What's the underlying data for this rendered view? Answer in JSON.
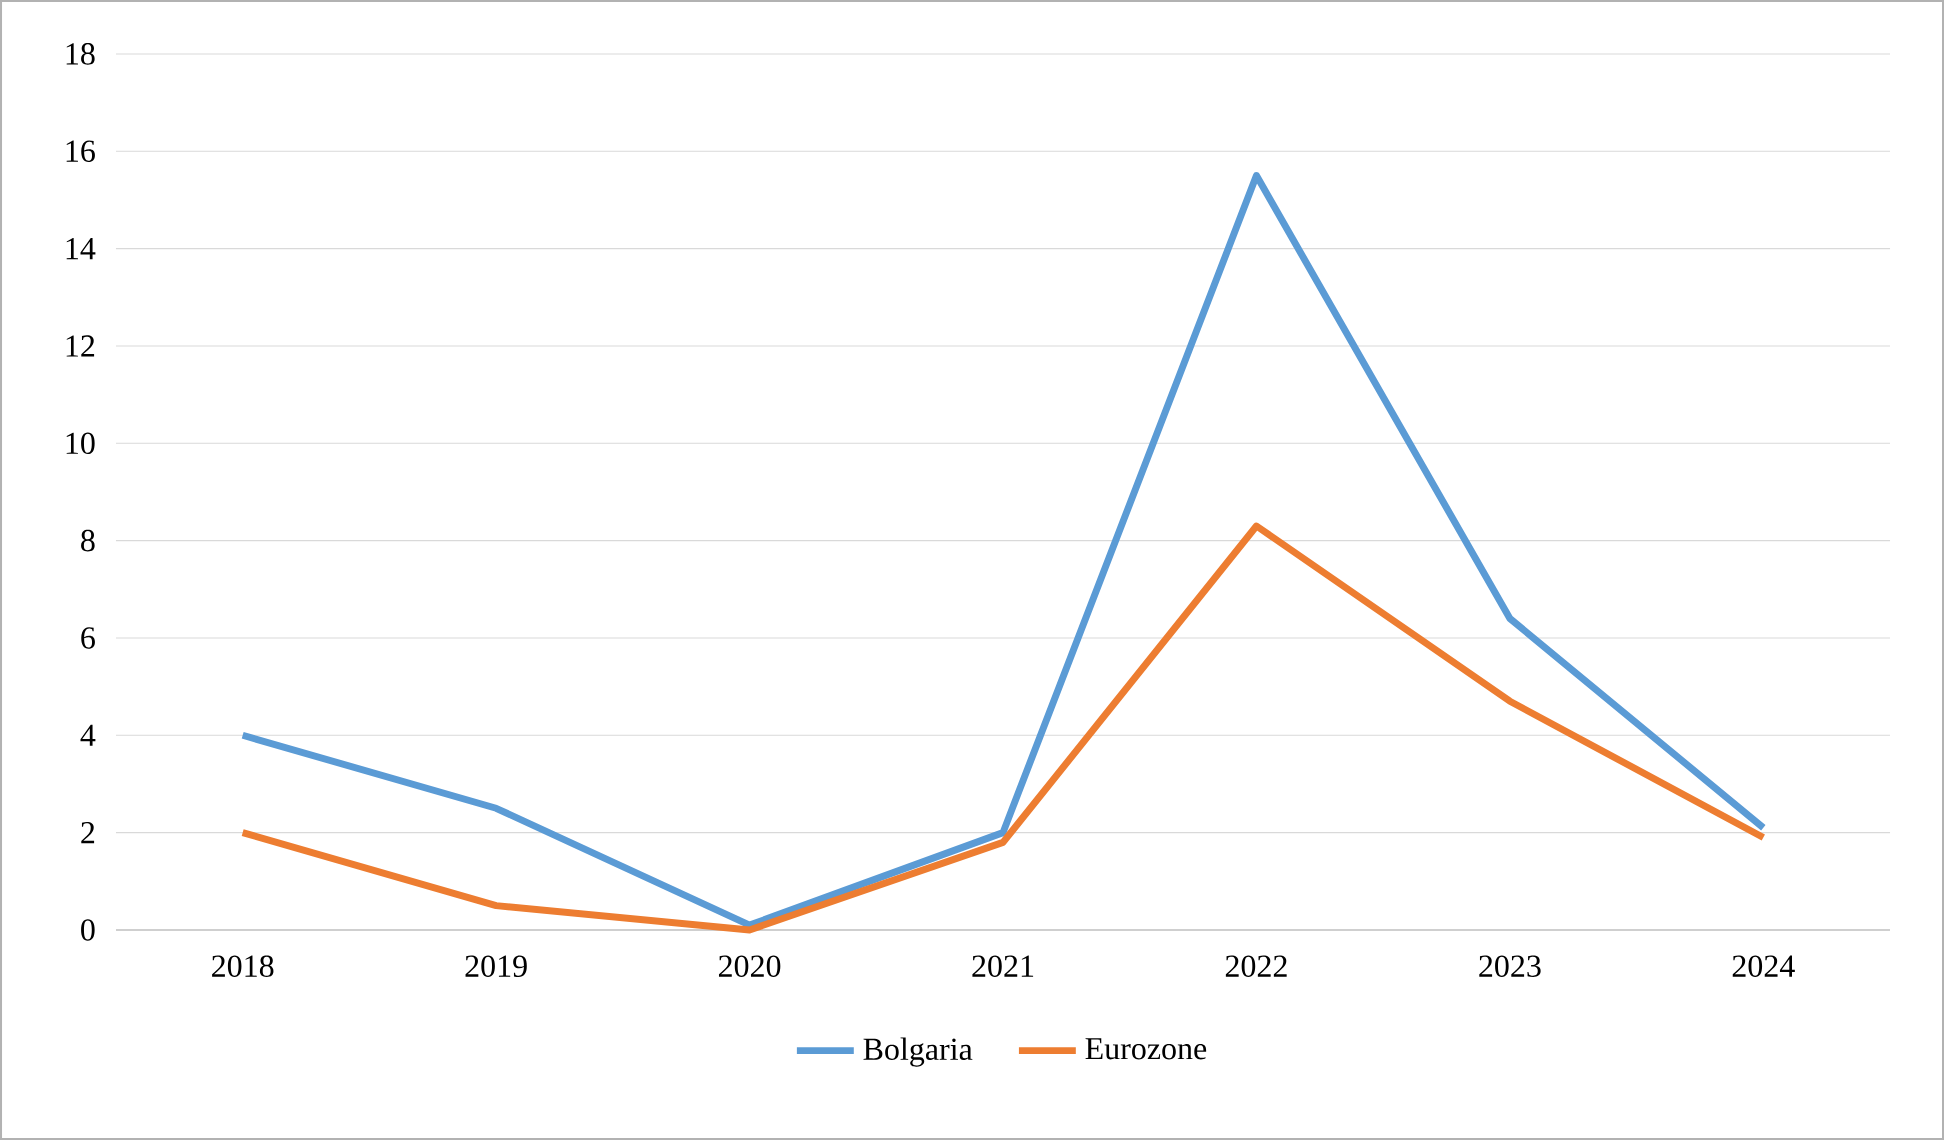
{
  "chart_data": {
    "type": "line",
    "categories": [
      "2018",
      "2019",
      "2020",
      "2021",
      "2022",
      "2023",
      "2024"
    ],
    "series": [
      {
        "name": "Bolgaria",
        "color": "#5b9bd5",
        "values": [
          4.0,
          2.5,
          0.1,
          2.0,
          15.5,
          6.4,
          2.1
        ]
      },
      {
        "name": "Eurozone",
        "color": "#ed7d31",
        "values": [
          2.0,
          0.5,
          0.0,
          1.8,
          8.3,
          4.7,
          1.9
        ]
      }
    ],
    "ylim": [
      0,
      18
    ],
    "yticks": [
      0,
      2,
      4,
      6,
      8,
      10,
      12,
      14,
      16,
      18
    ],
    "grid": "y",
    "legend": "bottom"
  }
}
